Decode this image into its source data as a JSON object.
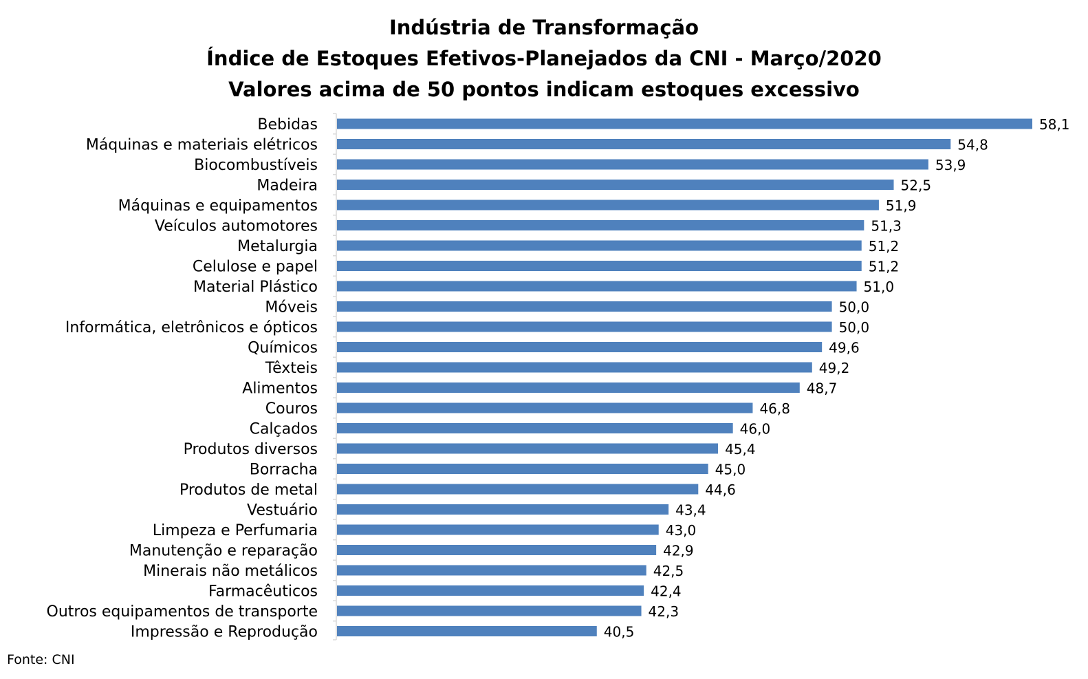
{
  "chart_data": {
    "type": "bar",
    "orientation": "horizontal",
    "title": [
      "Indústria de Transformação",
      "Índice de Estoques Efetivos-Planejados da CNI - Março/2020",
      "Valores acima de 50 pontos indicam estoques excessivo"
    ],
    "categories": [
      "Bebidas",
      "Máquinas e materiais elétricos",
      "Biocombustíveis",
      "Madeira",
      "Máquinas e equipamentos",
      "Veículos automotores",
      "Metalurgia",
      "Celulose e papel",
      "Material Plástico",
      "Móveis",
      "Informática, eletrônicos e ópticos",
      "Químicos",
      "Têxteis",
      "Alimentos",
      "Couros",
      "Calçados",
      "Produtos diversos",
      "Borracha",
      "Produtos de metal",
      "Vestuário",
      "Limpeza e Perfumaria",
      "Manutenção e reparação",
      "Minerais não metálicos",
      "Farmacêuticos",
      "Outros equipamentos de transporte",
      "Impressão e Reprodução"
    ],
    "values": [
      58.1,
      54.8,
      53.9,
      52.5,
      51.9,
      51.3,
      51.2,
      51.2,
      51.0,
      50.0,
      50.0,
      49.6,
      49.2,
      48.7,
      46.8,
      46.0,
      45.4,
      45.0,
      44.6,
      43.4,
      43.0,
      42.9,
      42.5,
      42.4,
      42.3,
      40.5
    ],
    "data_labels": [
      "58,1",
      "54,8",
      "53,9",
      "52,5",
      "51,9",
      "51,3",
      "51,2",
      "51,2",
      "51,0",
      "50,0",
      "50,0",
      "49,6",
      "49,2",
      "48,7",
      "46,8",
      "46,0",
      "45,4",
      "45,0",
      "44,6",
      "43,4",
      "43,0",
      "42,9",
      "42,5",
      "42,4",
      "42,3",
      "40,5"
    ],
    "xlim": [
      30,
      58.1
    ],
    "grid": false,
    "legend": "none",
    "bar_color": "#4f81bd"
  },
  "source": "Fonte: CNI"
}
